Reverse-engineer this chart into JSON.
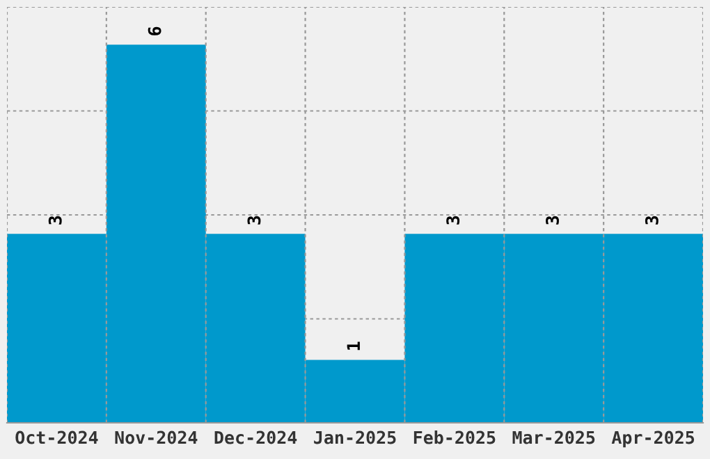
{
  "chart_data": {
    "type": "bar",
    "categories": [
      "Oct-2024",
      "Nov-2024",
      "Dec-2024",
      "Jan-2025",
      "Feb-2025",
      "Mar-2025",
      "Apr-2025"
    ],
    "values": [
      3,
      6,
      3,
      1,
      3,
      3,
      3
    ],
    "color": "#0099cc",
    "ylim": [
      0,
      6.6
    ],
    "yticks": [
      {
        "value": 1.65,
        "label": null
      },
      {
        "value": 3.3,
        "label": null
      },
      {
        "value": 4.95,
        "label": null
      },
      {
        "value": 6.6,
        "label": null
      }
    ],
    "grid": true,
    "data_labels": true
  }
}
